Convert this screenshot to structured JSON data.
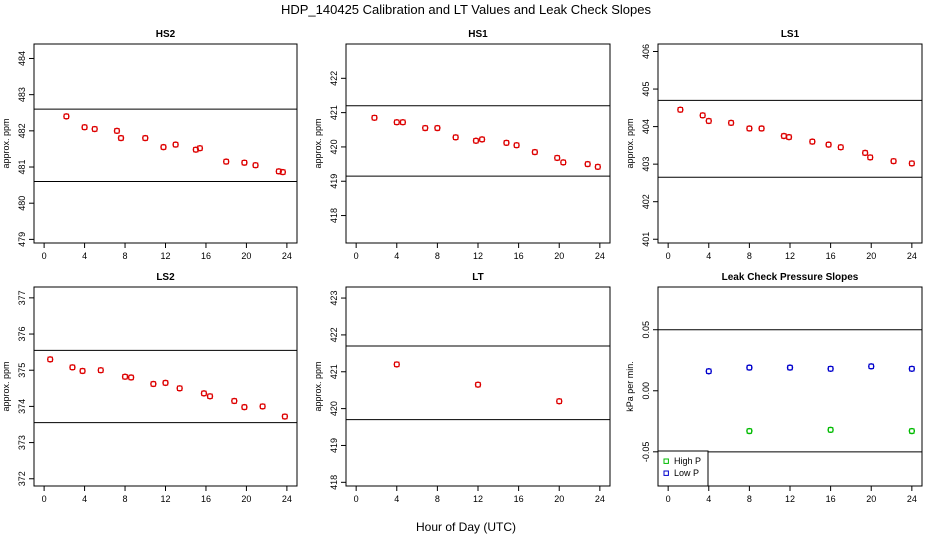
{
  "figure": {
    "title": "HDP_140425  Calibration and LT Values and Leak Check Slopes",
    "xlabel": "Hour of Day (UTC)"
  },
  "chart_data": [
    {
      "id": "HS2",
      "type": "scatter",
      "title": "HS2",
      "ylabel": "approx. ppm",
      "xlim": [
        -1,
        25
      ],
      "ylim": [
        478.9,
        484.4
      ],
      "xticks": [
        0,
        4,
        8,
        12,
        16,
        20,
        24
      ],
      "yticks": [
        479,
        480,
        481,
        482,
        483,
        484
      ],
      "hlines": [
        482.6,
        480.6
      ],
      "series": [
        {
          "name": "HS2",
          "color": "#dd0000",
          "x": [
            2.2,
            4.0,
            5.0,
            7.2,
            7.6,
            10.0,
            11.8,
            13.0,
            15.0,
            15.4,
            18.0,
            19.8,
            20.9,
            23.2,
            23.6
          ],
          "y": [
            482.4,
            482.1,
            482.05,
            482.0,
            481.8,
            481.8,
            481.55,
            481.62,
            481.48,
            481.52,
            481.15,
            481.12,
            481.05,
            480.88,
            480.86
          ]
        }
      ]
    },
    {
      "id": "HS1",
      "type": "scatter",
      "title": "HS1",
      "ylabel": "approx. ppm",
      "xlim": [
        -1,
        25
      ],
      "ylim": [
        417.2,
        423.0
      ],
      "xticks": [
        0,
        4,
        8,
        12,
        16,
        20,
        24
      ],
      "yticks": [
        418,
        419,
        420,
        421,
        422
      ],
      "hlines": [
        421.2,
        419.15
      ],
      "series": [
        {
          "name": "HS1",
          "color": "#dd0000",
          "x": [
            1.8,
            4.0,
            4.6,
            6.8,
            8.0,
            9.8,
            11.8,
            12.4,
            14.8,
            15.8,
            17.6,
            19.8,
            20.4,
            22.8,
            23.8
          ],
          "y": [
            420.85,
            420.72,
            420.72,
            420.55,
            420.55,
            420.28,
            420.18,
            420.22,
            420.12,
            420.05,
            419.85,
            419.68,
            419.55,
            419.5,
            419.42
          ]
        }
      ]
    },
    {
      "id": "LS1",
      "type": "scatter",
      "title": "LS1",
      "ylabel": "approx. ppm",
      "xlim": [
        -1,
        25
      ],
      "ylim": [
        400.9,
        406.2
      ],
      "xticks": [
        0,
        4,
        8,
        12,
        16,
        20,
        24
      ],
      "yticks": [
        401,
        402,
        403,
        404,
        405,
        406
      ],
      "hlines": [
        404.7,
        402.65
      ],
      "series": [
        {
          "name": "LS1",
          "color": "#dd0000",
          "x": [
            1.2,
            3.4,
            4.0,
            6.2,
            8.0,
            9.2,
            11.4,
            11.9,
            14.2,
            15.8,
            17.0,
            19.4,
            19.9,
            22.2,
            24.0
          ],
          "y": [
            404.45,
            404.3,
            404.15,
            404.1,
            403.95,
            403.95,
            403.75,
            403.72,
            403.6,
            403.52,
            403.45,
            403.3,
            403.18,
            403.08,
            403.02
          ]
        }
      ]
    },
    {
      "id": "LS2",
      "type": "scatter",
      "title": "LS2",
      "ylabel": "approx. ppm",
      "xlim": [
        -1,
        25
      ],
      "ylim": [
        371.8,
        377.3
      ],
      "xticks": [
        0,
        4,
        8,
        12,
        16,
        20,
        24
      ],
      "yticks": [
        372,
        373,
        374,
        375,
        376,
        377
      ],
      "hlines": [
        375.55,
        373.55
      ],
      "series": [
        {
          "name": "LS2",
          "color": "#dd0000",
          "x": [
            0.6,
            2.8,
            3.8,
            5.6,
            8.0,
            8.6,
            10.8,
            12.0,
            13.4,
            15.8,
            16.4,
            18.8,
            19.8,
            21.6,
            23.8
          ],
          "y": [
            375.3,
            375.08,
            374.98,
            375.0,
            374.82,
            374.8,
            374.62,
            374.65,
            374.5,
            374.36,
            374.28,
            374.15,
            373.98,
            374.0,
            373.72
          ]
        }
      ]
    },
    {
      "id": "LT",
      "type": "scatter",
      "title": "LT",
      "ylabel": "approx. ppm",
      "xlim": [
        -1,
        25
      ],
      "ylim": [
        417.9,
        423.3
      ],
      "xticks": [
        0,
        4,
        8,
        12,
        16,
        20,
        24
      ],
      "yticks": [
        418,
        419,
        420,
        421,
        422,
        423
      ],
      "hlines": [
        421.7,
        419.7
      ],
      "series": [
        {
          "name": "LT",
          "color": "#dd0000",
          "x": [
            4.0,
            12.0,
            20.0
          ],
          "y": [
            421.2,
            420.65,
            420.2
          ]
        }
      ]
    },
    {
      "id": "LEAK",
      "type": "scatter",
      "title": "Leak Check Pressure Slopes",
      "ylabel": "kPa per min.",
      "xlim": [
        -1,
        25
      ],
      "ylim": [
        -0.078,
        0.085
      ],
      "xticks": [
        0,
        4,
        8,
        12,
        16,
        20,
        24
      ],
      "yticks": [
        -0.05,
        0.0,
        0.05
      ],
      "ytick_labels": [
        "-0.05",
        "0.00",
        "0.05"
      ],
      "hlines": [
        0.05,
        -0.05
      ],
      "legend": "bottom-left",
      "series": [
        {
          "name": "High P",
          "color": "#00bb00",
          "x": [
            8,
            16,
            24
          ],
          "y": [
            -0.033,
            -0.032,
            -0.033
          ]
        },
        {
          "name": "Low P",
          "color": "#0000cc",
          "x": [
            4,
            8,
            12,
            16,
            20,
            24
          ],
          "y": [
            0.016,
            0.019,
            0.019,
            0.018,
            0.02,
            0.018
          ]
        }
      ]
    }
  ]
}
